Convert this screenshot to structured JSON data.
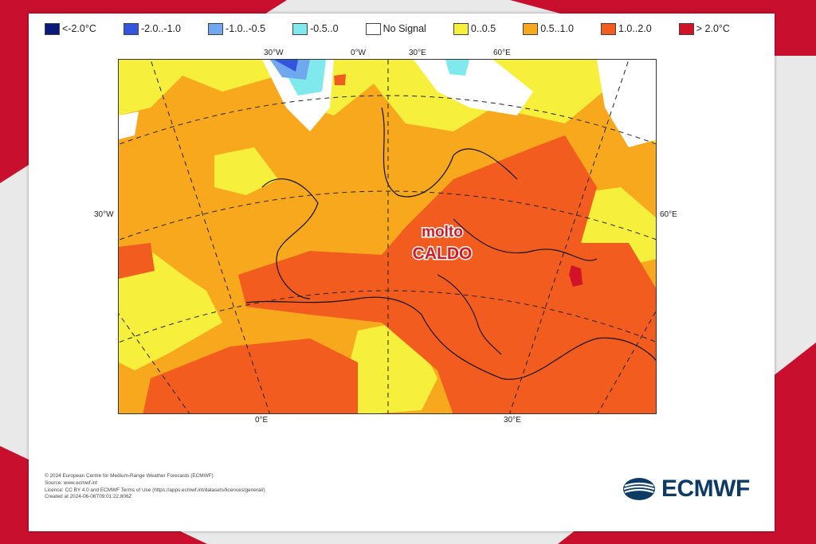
{
  "legend": [
    {
      "label": "<-2.0°C",
      "color": "#0a1a7a"
    },
    {
      "label": "-2.0..-1.0",
      "color": "#3355dd"
    },
    {
      "label": "-1.0..-0.5",
      "color": "#6fa8ee"
    },
    {
      "label": "-0.5..0",
      "color": "#7fe9ee"
    },
    {
      "label": "No Signal",
      "color": "#ffffff"
    },
    {
      "label": "0..0.5",
      "color": "#f6f03c"
    },
    {
      "label": "0.5..1.0",
      "color": "#f8a81c"
    },
    {
      "label": "1.0..2.0",
      "color": "#f25c1e"
    },
    {
      "label": "> 2.0°C",
      "color": "#d11328"
    }
  ],
  "axes": {
    "top": [
      "30°W",
      "0°W",
      "30°E",
      "60°E"
    ],
    "bottom": [
      "0°E",
      "30°E"
    ],
    "left": "30°W",
    "right": "60°E"
  },
  "annotation": {
    "line1": "molto",
    "line2": "CALDO",
    "color": "#d41a24"
  },
  "credits": [
    "© 2024 European Centre for Medium-Range Weather Forecasts (ECMWF)",
    "Source: www.ecmwf.int",
    "Licence: CC BY 4.0 and ECMWF Terms of Use (https://apps.ecmwf.int/datasets/licences/general/)",
    "Created at 2024-06-06T09:01:22.806Z"
  ],
  "logo": {
    "text": "ECMWF",
    "color": "#0e3a66"
  },
  "accents": {
    "frame_red": "#c8102e"
  }
}
